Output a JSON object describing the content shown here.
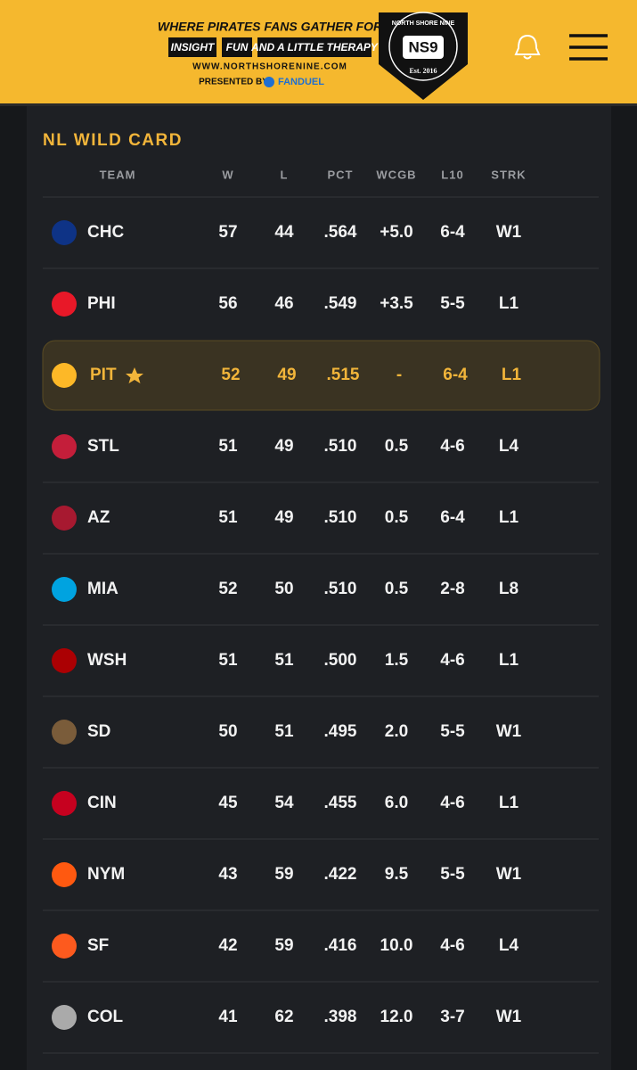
{
  "header": {
    "tagline": "WHERE PIRATES FANS GATHER FOR",
    "tags": [
      "INSIGHT",
      "FUN",
      "AND A LITTLE THERAPY"
    ],
    "url": "WWW.NORTHSHORENINE.COM",
    "presented": "PRESENTED BY",
    "sponsor": "FANDUEL",
    "logo": {
      "top": "NORTH SHORE NINE",
      "center": "NS9",
      "bottom": "Est. 2016"
    }
  },
  "table": {
    "title": "NL WILD CARD",
    "columns": [
      "TEAM",
      "W",
      "L",
      "PCT",
      "WCGB",
      "L10",
      "STRK"
    ],
    "highlighted_row": 2,
    "rows": [
      [
        "CHC",
        "57",
        "44",
        ".564",
        "+5.0",
        "6-4",
        "W1"
      ],
      [
        "PHI",
        "56",
        "46",
        ".549",
        "+3.5",
        "5-5",
        "L1"
      ],
      [
        "PIT",
        "52",
        "49",
        ".515",
        "-",
        "6-4",
        "L1"
      ],
      [
        "STL",
        "51",
        "49",
        ".510",
        "0.5",
        "4-6",
        "L4"
      ],
      [
        "AZ",
        "51",
        "49",
        ".510",
        "0.5",
        "6-4",
        "L1"
      ],
      [
        "MIA",
        "52",
        "50",
        ".510",
        "0.5",
        "2-8",
        "L8"
      ],
      [
        "WSH",
        "51",
        "51",
        ".500",
        "1.5",
        "4-6",
        "L1"
      ],
      [
        "SD",
        "50",
        "51",
        ".495",
        "2.0",
        "5-5",
        "W1"
      ],
      [
        "CIN",
        "45",
        "54",
        ".455",
        "6.0",
        "4-6",
        "L1"
      ],
      [
        "NYM",
        "43",
        "59",
        ".422",
        "9.5",
        "5-5",
        "W1"
      ],
      [
        "SF",
        "42",
        "59",
        ".416",
        "10.0",
        "4-6",
        "L4"
      ],
      [
        "COL",
        "41",
        "62",
        ".398",
        "12.0",
        "3-7",
        "W1"
      ]
    ]
  }
}
